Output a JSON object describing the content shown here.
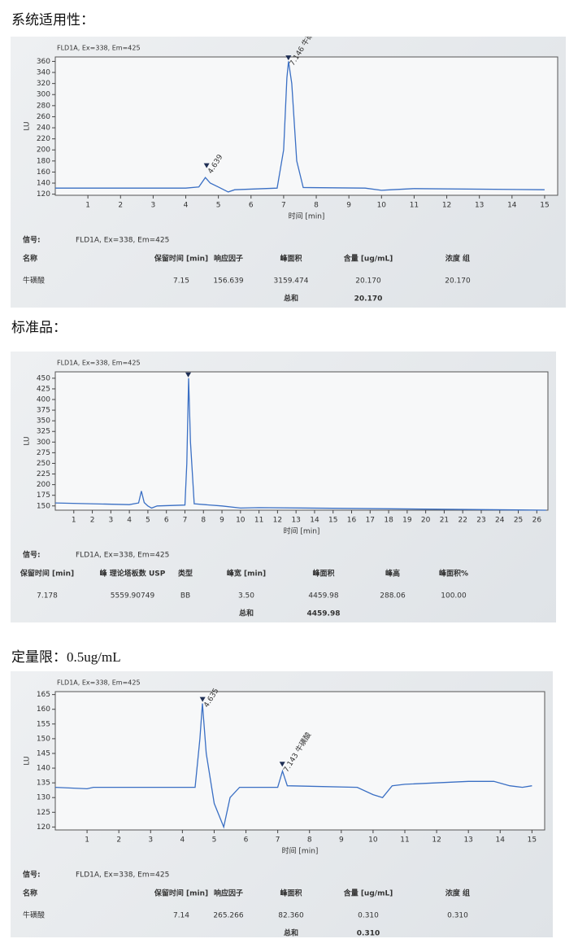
{
  "sections": [
    {
      "heading": "系统适用性：",
      "signal_label": "信号:",
      "signal": "FLD1A, Ex=338, Em=425",
      "table": {
        "header": [
          "名称",
          "保留时间 [min]",
          "响应因子",
          "峰面积",
          "含量 [ug/mL]",
          "浓度 组"
        ],
        "rows": [
          [
            "牛磺酸",
            "7.15",
            "156.639",
            "3159.474",
            "20.170",
            "20.170"
          ]
        ],
        "total": {
          "label": "总和",
          "value": "20.170"
        }
      }
    },
    {
      "heading": "标准品：",
      "signal_label": "信号:",
      "signal": "FLD1A, Ex=338, Em=425",
      "table": {
        "header": [
          "保留时间 [min]",
          "峰 理论塔板数 USP",
          "类型",
          "峰宽 [min]",
          "峰面积",
          "峰高",
          "峰面积%"
        ],
        "rows": [
          [
            "7.178",
            "5559.90749",
            "BB",
            "3.50",
            "4459.98",
            "288.06",
            "100.00"
          ]
        ],
        "total": {
          "label": "总和",
          "value": "4459.98"
        }
      }
    },
    {
      "heading": "定量限：0.5ug/mL",
      "signal_label": "信号:",
      "signal": "FLD1A, Ex=338, Em=425",
      "table": {
        "header": [
          "名称",
          "保留时间 [min]",
          "响应因子",
          "峰面积",
          "含量 [ug/mL]",
          "浓度 组"
        ],
        "rows": [
          [
            "牛磺酸",
            "7.14",
            "265.266",
            "82.360",
            "0.310",
            "0.310"
          ]
        ],
        "total": {
          "label": "总和",
          "value": "0.310"
        }
      }
    }
  ],
  "chart_data": [
    {
      "type": "line",
      "title": "FLD1A, Ex=338, Em=425",
      "y_label": "LU",
      "x_label": "时间 [min]",
      "color": "#3a6fc4",
      "x": [
        0,
        4,
        4.4,
        4.6,
        4.75,
        5,
        5.3,
        5.5,
        6.8,
        7,
        7.1,
        7.15,
        7.25,
        7.4,
        7.6,
        9.5,
        10,
        10.3,
        11,
        15
      ],
      "values": [
        131,
        131,
        133,
        150,
        140,
        133,
        124,
        128,
        131,
        200,
        330,
        360,
        320,
        180,
        132,
        131,
        127,
        128,
        130,
        128
      ],
      "xlim": [
        0,
        15.4
      ],
      "xticks": [
        1,
        2,
        3,
        4,
        5,
        6,
        7,
        8,
        9,
        10,
        11,
        12,
        13,
        14,
        15
      ],
      "ylim": [
        118,
        368
      ],
      "yticks": [
        120,
        140,
        160,
        180,
        200,
        220,
        240,
        260,
        280,
        300,
        320,
        340,
        360
      ],
      "peaks": [
        {
          "label": "4.639",
          "x": 4.639,
          "y": 167
        },
        {
          "label": "7.146 牛磺酸",
          "x": 7.146,
          "y": 362
        }
      ]
    },
    {
      "type": "line",
      "title": "FLD1A, Ex=338, Em=425",
      "y_label": "LU",
      "x_label": "时间 [min]",
      "color": "#3a6fc4",
      "x": [
        0,
        4,
        4.5,
        4.65,
        4.8,
        5,
        5.2,
        5.5,
        7,
        7.1,
        7.2,
        7.3,
        7.5,
        9,
        10,
        11,
        26.5
      ],
      "values": [
        157,
        153,
        157,
        185,
        158,
        150,
        145,
        150,
        152,
        250,
        450,
        300,
        155,
        150,
        145,
        146,
        140
      ],
      "xlim": [
        0,
        26.6
      ],
      "xticks": [
        1,
        2,
        3,
        4,
        5,
        6,
        7,
        8,
        9,
        10,
        11,
        12,
        13,
        14,
        15,
        16,
        17,
        18,
        19,
        20,
        21,
        22,
        23,
        24,
        25,
        26
      ],
      "ylim": [
        140,
        465
      ],
      "yticks": [
        150,
        175,
        200,
        225,
        250,
        275,
        300,
        325,
        350,
        375,
        400,
        425,
        450
      ],
      "peaks": [
        {
          "x": 7.178,
          "y": 452
        }
      ]
    },
    {
      "type": "line",
      "title": "FLD1A, Ex=338, Em=425",
      "y_label": "LU",
      "x_label": "时间 [min]",
      "color": "#3a6fc4",
      "x": [
        0,
        1,
        1.2,
        4.4,
        4.55,
        4.63,
        4.75,
        5,
        5.3,
        5.5,
        5.8,
        7,
        7.15,
        7.3,
        9.5,
        10,
        10.3,
        10.6,
        11,
        13,
        13.8,
        14.3,
        14.7,
        15
      ],
      "values": [
        133.5,
        133,
        133.5,
        133.5,
        150,
        162,
        145,
        128,
        120,
        130,
        133.5,
        133.5,
        139,
        134,
        133.5,
        131,
        130,
        134,
        134.5,
        135.5,
        135.5,
        134,
        133.5,
        134
      ],
      "xlim": [
        0,
        15.4
      ],
      "xticks": [
        1,
        2,
        3,
        4,
        5,
        6,
        7,
        8,
        9,
        10,
        11,
        12,
        13,
        14,
        15
      ],
      "ylim": [
        119,
        166
      ],
      "yticks": [
        120,
        125,
        130,
        135,
        140,
        145,
        150,
        155,
        160,
        165
      ],
      "peaks": [
        {
          "label": "4.635",
          "x": 4.635,
          "y": 162.5
        },
        {
          "label": "7.143 牛磺酸",
          "x": 7.143,
          "y": 140.5
        }
      ]
    }
  ]
}
